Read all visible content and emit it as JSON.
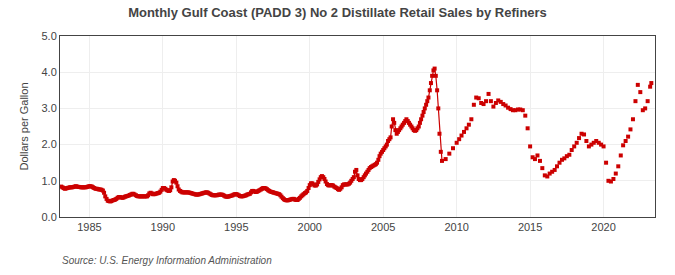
{
  "chart_data": {
    "type": "line",
    "title": "Monthly Gulf Coast (PADD 3) No 2 Distillate Retail Sales by Refiners",
    "ylabel": "Dollars per Gallon",
    "annotations": [
      "Source: U.S. Energy Information Administration"
    ],
    "color": "#cc0000",
    "marker": "square",
    "line_style": "solid",
    "grid": true,
    "xlim": [
      1983.0,
      2023.5
    ],
    "xticks": [
      1985,
      1990,
      1995,
      2000,
      2005,
      2010,
      2015,
      2020
    ],
    "ylim": [
      0.0,
      5.0
    ],
    "yticks": [
      {
        "value": 0.0,
        "label": "0.0"
      },
      {
        "value": 1.0,
        "label": "1.0"
      },
      {
        "value": 2.0,
        "label": "2.0"
      },
      {
        "value": 3.0,
        "label": "3.0"
      },
      {
        "value": 4.0,
        "label": "4.0"
      },
      {
        "value": 5.0,
        "label": "5.0"
      }
    ],
    "x": [
      1983.08,
      1983.17,
      1983.25,
      1983.33,
      1983.42,
      1983.5,
      1983.58,
      1983.67,
      1983.75,
      1983.83,
      1983.92,
      1984.0,
      1984.08,
      1984.17,
      1984.25,
      1984.33,
      1984.42,
      1984.5,
      1984.58,
      1984.67,
      1984.75,
      1984.83,
      1984.92,
      1985.0,
      1985.08,
      1985.17,
      1985.25,
      1985.33,
      1985.42,
      1985.5,
      1985.58,
      1985.67,
      1985.75,
      1985.83,
      1985.92,
      1986.0,
      1986.08,
      1986.17,
      1986.25,
      1986.33,
      1986.42,
      1986.5,
      1986.58,
      1986.67,
      1986.75,
      1986.83,
      1986.92,
      1987.0,
      1987.08,
      1987.17,
      1987.25,
      1987.33,
      1987.42,
      1987.5,
      1987.58,
      1987.67,
      1987.75,
      1987.83,
      1987.92,
      1988.0,
      1988.08,
      1988.17,
      1988.25,
      1988.33,
      1988.42,
      1988.5,
      1988.58,
      1988.67,
      1988.75,
      1988.83,
      1988.92,
      1989.0,
      1989.08,
      1989.17,
      1989.25,
      1989.33,
      1989.42,
      1989.5,
      1989.58,
      1989.67,
      1989.75,
      1989.83,
      1989.92,
      1990.0,
      1990.08,
      1990.17,
      1990.25,
      1990.33,
      1990.42,
      1990.5,
      1990.58,
      1990.67,
      1990.75,
      1990.83,
      1990.92,
      1991.0,
      1991.08,
      1991.17,
      1991.25,
      1991.33,
      1991.42,
      1991.5,
      1991.58,
      1991.67,
      1991.75,
      1991.83,
      1991.92,
      1992.0,
      1992.08,
      1992.17,
      1992.25,
      1992.33,
      1992.42,
      1992.5,
      1992.58,
      1992.67,
      1992.75,
      1992.83,
      1992.92,
      1993.0,
      1993.08,
      1993.17,
      1993.25,
      1993.33,
      1993.42,
      1993.5,
      1993.58,
      1993.67,
      1993.75,
      1993.83,
      1993.92,
      1994.0,
      1994.08,
      1994.17,
      1994.25,
      1994.33,
      1994.42,
      1994.5,
      1994.58,
      1994.67,
      1994.75,
      1994.83,
      1994.92,
      1995.0,
      1995.08,
      1995.17,
      1995.25,
      1995.33,
      1995.42,
      1995.5,
      1995.58,
      1995.67,
      1995.75,
      1995.83,
      1995.92,
      1996.0,
      1996.08,
      1996.17,
      1996.25,
      1996.33,
      1996.42,
      1996.5,
      1996.58,
      1996.67,
      1996.75,
      1996.83,
      1996.92,
      1997.0,
      1997.08,
      1997.17,
      1997.25,
      1997.33,
      1997.42,
      1997.5,
      1997.58,
      1997.67,
      1997.75,
      1997.83,
      1997.92,
      1998.0,
      1998.08,
      1998.17,
      1998.25,
      1998.33,
      1998.42,
      1998.5,
      1998.58,
      1998.67,
      1998.75,
      1998.83,
      1998.92,
      1999.0,
      1999.08,
      1999.17,
      1999.25,
      1999.33,
      1999.42,
      1999.5,
      1999.58,
      1999.67,
      1999.75,
      1999.83,
      1999.92,
      2000.0,
      2000.08,
      2000.17,
      2000.25,
      2000.33,
      2000.42,
      2000.5,
      2000.58,
      2000.67,
      2000.75,
      2000.83,
      2000.92,
      2001.0,
      2001.08,
      2001.17,
      2001.25,
      2001.33,
      2001.42,
      2001.5,
      2001.58,
      2001.67,
      2001.75,
      2001.83,
      2001.92,
      2002.0,
      2002.08,
      2002.17,
      2002.25,
      2002.33,
      2002.42,
      2002.5,
      2002.58,
      2002.67,
      2002.75,
      2002.83,
      2002.92,
      2003.0,
      2003.08,
      2003.17,
      2003.25,
      2003.33,
      2003.42,
      2003.5,
      2003.58,
      2003.67,
      2003.75,
      2003.83,
      2003.92,
      2004.0,
      2004.08,
      2004.17,
      2004.25,
      2004.33,
      2004.42,
      2004.5,
      2004.58,
      2004.67,
      2004.75,
      2004.83,
      2004.92,
      2005.0,
      2005.08,
      2005.17,
      2005.25,
      2005.33,
      2005.42,
      2005.5,
      2005.58,
      2005.67,
      2005.75,
      2005.83,
      2005.92,
      2006.0,
      2006.08,
      2006.17,
      2006.25,
      2006.33,
      2006.42,
      2006.5,
      2006.58,
      2006.67,
      2006.75,
      2006.83,
      2006.92,
      2007.0,
      2007.08,
      2007.17,
      2007.25,
      2007.33,
      2007.42,
      2007.5,
      2007.58,
      2007.67,
      2007.75,
      2007.83,
      2007.92,
      2008.0,
      2008.08,
      2008.17,
      2008.25,
      2008.33,
      2008.42,
      2008.5,
      2008.58,
      2008.67,
      2008.75,
      2008.83,
      2008.92,
      2009.0,
      2009.08,
      2009.17,
      2009.25,
      2009.33,
      2009.42,
      2009.5,
      2009.58,
      2009.67,
      2009.75,
      2009.83,
      2009.92,
      2010.0,
      2010.08,
      2010.17,
      2010.25,
      2010.33,
      2010.42,
      2010.5,
      2010.58,
      2010.67,
      2010.75,
      2010.83,
      2010.92,
      2011.0,
      2011.08,
      2011.17,
      2011.25,
      2011.33,
      2011.42,
      2011.5,
      2011.58,
      2011.67,
      2011.75,
      2011.83,
      2011.92,
      2012.0,
      2012.08,
      2012.17,
      2012.25,
      2012.33,
      2012.42,
      2012.5,
      2012.58,
      2012.67,
      2012.75,
      2012.83,
      2012.92,
      2013.0,
      2013.08,
      2013.17,
      2013.25,
      2013.33,
      2013.42,
      2013.5,
      2013.58,
      2013.67,
      2013.75,
      2013.83,
      2013.92,
      2014.0,
      2014.08,
      2014.17,
      2014.25,
      2014.33,
      2014.42,
      2014.5,
      2014.58,
      2014.67,
      2014.75,
      2014.83,
      2014.92,
      2015.0,
      2015.08,
      2015.17,
      2015.25,
      2015.33,
      2015.42,
      2015.5,
      2015.58,
      2015.67,
      2015.75,
      2015.83,
      2015.92,
      2016.0,
      2016.08,
      2016.17,
      2016.25,
      2016.33,
      2016.42,
      2016.5,
      2016.58,
      2016.67,
      2016.75,
      2016.83,
      2016.92,
      2017.0,
      2017.08,
      2017.17,
      2017.25,
      2017.33,
      2017.42,
      2017.5,
      2017.58,
      2017.67,
      2017.75,
      2017.83,
      2017.92,
      2018.0,
      2018.08,
      2018.17,
      2018.25,
      2018.33,
      2018.42,
      2018.5,
      2018.58,
      2018.67,
      2018.75,
      2018.83,
      2018.92,
      2019.0,
      2019.08,
      2019.17,
      2019.25,
      2019.33,
      2019.42,
      2019.5,
      2019.58,
      2019.67,
      2019.75,
      2019.83,
      2019.92,
      2020.0,
      2020.08,
      2020.17,
      2020.25,
      2020.33,
      2020.42,
      2020.5,
      2020.58,
      2020.67,
      2020.75,
      2020.83,
      2020.92,
      2021.0,
      2021.08,
      2021.17,
      2021.25,
      2021.33,
      2021.42,
      2021.5,
      2021.58,
      2021.67,
      2021.75,
      2021.83,
      2021.92,
      2022.0,
      2022.08,
      2022.17,
      2022.25,
      2022.33,
      2022.42,
      2022.5,
      2022.58,
      2022.67,
      2022.75,
      2022.83,
      2022.92,
      2023.0,
      2023.08,
      2023.17,
      2023.25
    ],
    "values": [
      0.84,
      0.82,
      0.8,
      0.78,
      0.79,
      0.8,
      0.81,
      0.82,
      0.82,
      0.82,
      0.83,
      0.84,
      0.85,
      0.84,
      0.83,
      0.83,
      0.82,
      0.82,
      0.82,
      0.82,
      0.82,
      0.83,
      0.84,
      0.85,
      0.85,
      0.84,
      0.82,
      0.8,
      0.78,
      0.78,
      0.77,
      0.76,
      0.76,
      0.75,
      0.73,
      0.67,
      0.57,
      0.5,
      0.45,
      0.44,
      0.43,
      0.44,
      0.46,
      0.47,
      0.48,
      0.5,
      0.53,
      0.55,
      0.55,
      0.54,
      0.53,
      0.54,
      0.56,
      0.57,
      0.58,
      0.59,
      0.61,
      0.62,
      0.64,
      0.64,
      0.62,
      0.6,
      0.58,
      0.57,
      0.57,
      0.57,
      0.57,
      0.57,
      0.57,
      0.57,
      0.57,
      0.6,
      0.65,
      0.67,
      0.65,
      0.63,
      0.63,
      0.64,
      0.65,
      0.66,
      0.67,
      0.7,
      0.75,
      0.8,
      0.8,
      0.78,
      0.75,
      0.73,
      0.72,
      0.74,
      0.82,
      0.98,
      1.02,
      1.0,
      0.95,
      0.85,
      0.76,
      0.72,
      0.7,
      0.68,
      0.68,
      0.68,
      0.68,
      0.68,
      0.68,
      0.67,
      0.66,
      0.65,
      0.64,
      0.63,
      0.62,
      0.62,
      0.62,
      0.63,
      0.64,
      0.65,
      0.66,
      0.67,
      0.68,
      0.68,
      0.67,
      0.65,
      0.63,
      0.61,
      0.6,
      0.6,
      0.6,
      0.6,
      0.61,
      0.62,
      0.62,
      0.62,
      0.61,
      0.59,
      0.57,
      0.56,
      0.56,
      0.57,
      0.58,
      0.59,
      0.6,
      0.62,
      0.63,
      0.63,
      0.62,
      0.6,
      0.58,
      0.57,
      0.57,
      0.58,
      0.59,
      0.6,
      0.62,
      0.63,
      0.64,
      0.68,
      0.72,
      0.72,
      0.7,
      0.69,
      0.7,
      0.72,
      0.74,
      0.76,
      0.78,
      0.8,
      0.8,
      0.79,
      0.77,
      0.74,
      0.72,
      0.7,
      0.69,
      0.68,
      0.67,
      0.66,
      0.65,
      0.64,
      0.63,
      0.6,
      0.56,
      0.52,
      0.49,
      0.47,
      0.46,
      0.46,
      0.47,
      0.48,
      0.49,
      0.5,
      0.5,
      0.48,
      0.47,
      0.47,
      0.5,
      0.53,
      0.57,
      0.6,
      0.63,
      0.66,
      0.68,
      0.72,
      0.8,
      0.88,
      0.93,
      0.93,
      0.9,
      0.87,
      0.87,
      0.9,
      0.97,
      1.04,
      1.1,
      1.13,
      1.1,
      1.05,
      0.98,
      0.91,
      0.88,
      0.87,
      0.88,
      0.88,
      0.87,
      0.84,
      0.82,
      0.8,
      0.77,
      0.75,
      0.78,
      0.82,
      0.88,
      0.9,
      0.9,
      0.9,
      0.9,
      0.92,
      0.95,
      1.0,
      1.05,
      1.1,
      1.25,
      1.3,
      1.15,
      1.05,
      1.02,
      1.02,
      1.05,
      1.1,
      1.15,
      1.2,
      1.25,
      1.3,
      1.35,
      1.38,
      1.4,
      1.42,
      1.44,
      1.46,
      1.5,
      1.58,
      1.68,
      1.75,
      1.8,
      1.85,
      1.9,
      1.95,
      2.0,
      2.1,
      2.15,
      2.2,
      2.5,
      2.7,
      2.6,
      2.4,
      2.3,
      2.35,
      2.4,
      2.45,
      2.5,
      2.55,
      2.6,
      2.65,
      2.7,
      2.65,
      2.6,
      2.55,
      2.5,
      2.45,
      2.4,
      2.38,
      2.4,
      2.45,
      2.5,
      2.6,
      2.7,
      2.8,
      2.9,
      3.0,
      3.1,
      3.2,
      3.3,
      3.5,
      3.7,
      3.9,
      4.05,
      4.1,
      3.9,
      3.5,
      3.0,
      2.3,
      1.8,
      1.55,
      null,
      null,
      1.6,
      null,
      null,
      1.75,
      null,
      null,
      1.9,
      null,
      null,
      2.05,
      null,
      2.15,
      null,
      2.25,
      null,
      2.35,
      null,
      2.45,
      null,
      2.55,
      null,
      2.7,
      null,
      3.1,
      null,
      3.3,
      null,
      3.28,
      null,
      3.15,
      null,
      3.12,
      null,
      3.2,
      null,
      3.4,
      null,
      3.2,
      null,
      3.05,
      null,
      3.15,
      null,
      3.22,
      null,
      3.18,
      null,
      3.12,
      null,
      3.08,
      null,
      3.02,
      null,
      2.98,
      null,
      2.95,
      null,
      2.95,
      null,
      2.97,
      null,
      2.97,
      null,
      2.95,
      null,
      2.8,
      null,
      2.45,
      null,
      1.95,
      null,
      1.65,
      null,
      1.6,
      null,
      1.7,
      null,
      1.55,
      null,
      1.35,
      null,
      1.15,
      null,
      1.12,
      null,
      1.2,
      null,
      1.25,
      null,
      1.3,
      null,
      1.4,
      null,
      1.5,
      null,
      1.58,
      null,
      1.62,
      null,
      1.68,
      null,
      1.72,
      null,
      1.85,
      null,
      1.95,
      null,
      2.05,
      null,
      2.18,
      null,
      2.3,
      null,
      2.28,
      null,
      2.1,
      null,
      1.95,
      null,
      2.0,
      null,
      2.05,
      null,
      2.1,
      null,
      2.05,
      null,
      2.0,
      null,
      1.95,
      null,
      1.5,
      null,
      1.0,
      null,
      0.98,
      null,
      1.05,
      null,
      1.2,
      null,
      1.4,
      null,
      1.7,
      null,
      1.98,
      null,
      2.1,
      null,
      2.22,
      null,
      2.42,
      null,
      2.7,
      null,
      3.2,
      null,
      3.65,
      null,
      3.45,
      null,
      2.95,
      null,
      3.0,
      null,
      3.2,
      null,
      3.6,
      3.7
    ]
  }
}
